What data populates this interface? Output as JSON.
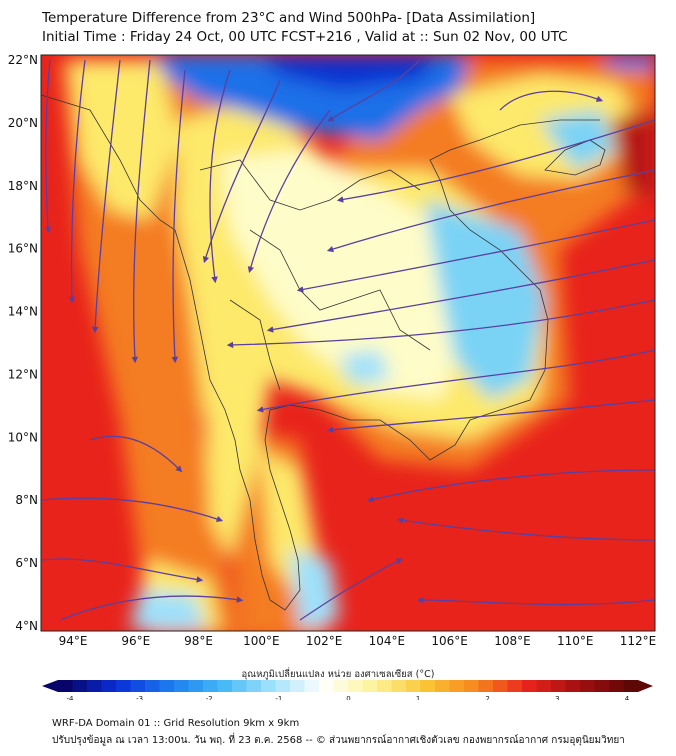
{
  "title": {
    "line1": "Temperature Difference from 23°C and Wind 500hPa- [Data Assimilation]",
    "line2": "Initial Time : Friday 24 Oct, 00 UTC FCST+216 , Valid at ::  Sun 02 Nov, 00 UTC"
  },
  "map": {
    "lat_labels": [
      "22°N",
      "20°N",
      "18°N",
      "16°N",
      "14°N",
      "12°N",
      "10°N",
      "8°N",
      "6°N",
      "4°N"
    ],
    "lon_labels": [
      "94°E",
      "96°E",
      "98°E",
      "100°E",
      "102°E",
      "104°E",
      "106°E",
      "108°E",
      "110°E",
      "112°E"
    ],
    "colors": {
      "hot": "#e8231c",
      "warm": "#f47b20",
      "mild": "#fde96b",
      "neutral": "#fefcc8",
      "cool": "#7ad3f5",
      "cold": "#1c6fe8",
      "very_cold": "#1030d0",
      "streamline": "#5b3fa0",
      "border": "#333333"
    }
  },
  "colorbar": {
    "title": "อุณหภูมิเปลี่ยนแปลง หน่วย องศาเซลเซียส (°C)",
    "ticks": [
      "-4",
      "-3",
      "-2",
      "-1",
      "0",
      "1",
      "2",
      "3",
      "4"
    ],
    "stops": [
      "#07046a",
      "#0a2fd6",
      "#1c78ef",
      "#40b6f5",
      "#9fe1fb",
      "#ffffff",
      "#fdf39a",
      "#fbc535",
      "#f6851f",
      "#e8231c",
      "#a10f0f",
      "#5e0707"
    ]
  },
  "footer": {
    "line1": "WRF-DA Domain 01 :: Grid Resolution 9km x 9km",
    "line2": "ปรับปรุงข้อมูล ณ เวลา 13:00น. วัน พฤ. ที่ 23 ต.ค. 2568 -- © ส่วนพยากรณ์อากาศเชิงตัวเลข กองพยากรณ์อากาศ กรมอุตุนิยมวิทยา"
  }
}
